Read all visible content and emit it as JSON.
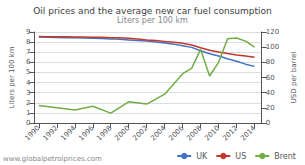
{
  "chart_data": {
    "type": "line",
    "title": "Oil prices and the average new car fuel consumption",
    "subtitle": "Liters per 100 km",
    "ylabel": "Liters per 100 km",
    "y2label": "USD per barrel",
    "annotation": "www.globalpetrolprices.com",
    "series": [
      {
        "name": "UK",
        "color": "#4472c4",
        "x": [
          1990,
          1991,
          1992,
          1993,
          1994,
          1995,
          1996,
          1997,
          1998,
          1999,
          2000,
          2001,
          2002,
          2003,
          2004,
          2005,
          2006,
          2007,
          2008,
          2009,
          2010,
          2011,
          2012,
          2013,
          2014
        ],
        "values": [
          8.5,
          8.48,
          8.45,
          8.43,
          8.42,
          8.4,
          8.38,
          8.35,
          8.32,
          8.28,
          8.22,
          8.16,
          8.1,
          8.02,
          7.92,
          7.8,
          7.65,
          7.48,
          7.15,
          6.85,
          6.62,
          6.35,
          6.1,
          5.82,
          5.6
        ]
      },
      {
        "name": "US",
        "color": "#c0392b",
        "x": [
          1990,
          1991,
          1992,
          1993,
          1994,
          1995,
          1996,
          1997,
          1998,
          1999,
          2000,
          2001,
          2002,
          2003,
          2004,
          2005,
          2006,
          2007,
          2008,
          2009,
          2010,
          2011,
          2012,
          2013,
          2014
        ],
        "values": [
          8.55,
          8.54,
          8.53,
          8.52,
          8.51,
          8.5,
          8.49,
          8.47,
          8.44,
          8.42,
          8.38,
          8.3,
          8.22,
          8.15,
          8.07,
          7.98,
          7.88,
          7.72,
          7.45,
          7.2,
          7.02,
          6.88,
          6.72,
          6.62,
          6.5
        ]
      },
      {
        "name": "Brent",
        "color": "#70ad47",
        "axis": "y2",
        "x": [
          1990,
          1992,
          1994,
          1996,
          1998,
          2000,
          2002,
          2004,
          2006,
          2007,
          2008,
          2009,
          2010,
          2011,
          2012,
          2013,
          2014
        ],
        "values": [
          23,
          20,
          17,
          22,
          13,
          28,
          25,
          38,
          65,
          72,
          97,
          62,
          80,
          111,
          112,
          108,
          100
        ]
      }
    ],
    "xlim": [
      1989.5,
      2014.8
    ],
    "xticks": [
      1990,
      1992,
      1994,
      1996,
      1998,
      2000,
      2002,
      2004,
      2006,
      2008,
      2010,
      2012,
      2014
    ],
    "ylim": [
      0,
      9
    ],
    "yticks": [
      0,
      1,
      2,
      3,
      4,
      5,
      6,
      7,
      8,
      9
    ],
    "y2lim": [
      0,
      120
    ],
    "y2ticks": [
      0,
      20,
      40,
      60,
      80,
      100,
      120
    ],
    "grid": true,
    "legend": "bottom"
  }
}
